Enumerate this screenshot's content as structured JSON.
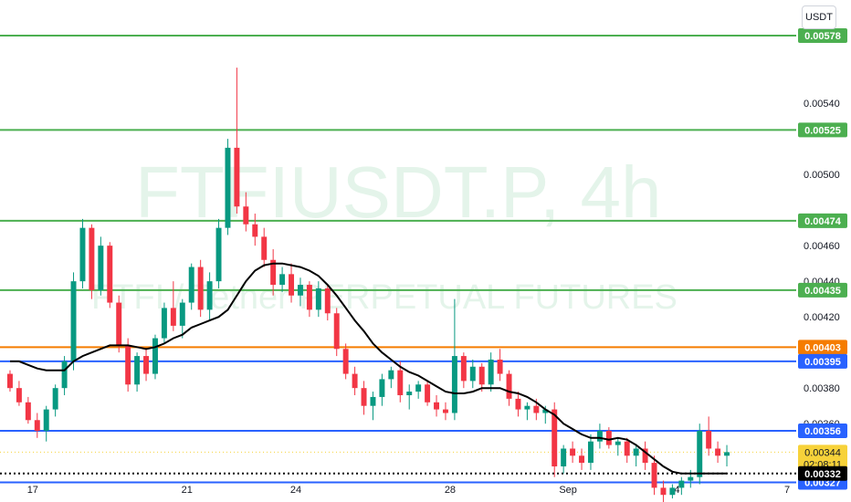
{
  "chart_data": {
    "type": "candlestick",
    "unit": "USDT",
    "watermark_symbol": "FTFIUSDT.P, 4h",
    "watermark_desc": "FTFI / Tether PERPETUAL FUTURES",
    "ylim": [
      0.00316,
      0.00598
    ],
    "y_ticks": [
      "0.00540",
      "0.00500",
      "0.00460",
      "0.00440",
      "0.00420",
      "0.00380",
      "0.00360"
    ],
    "x_ticks": [
      "17",
      "21",
      "24",
      "28",
      "Sep",
      "4",
      "7"
    ],
    "levels": [
      {
        "value": "0.00578",
        "color": "#4caf50"
      },
      {
        "value": "0.00525",
        "color": "#4caf50"
      },
      {
        "value": "0.00474",
        "color": "#4caf50"
      },
      {
        "value": "0.00435",
        "color": "#4caf50"
      },
      {
        "value": "0.00403",
        "color": "#f57c00"
      },
      {
        "value": "0.00395",
        "color": "#2962ff"
      },
      {
        "value": "0.00356",
        "color": "#2962ff"
      },
      {
        "value": "0.00327",
        "color": "#2962ff"
      }
    ],
    "current_price": "0.00344",
    "countdown": "02:08:11",
    "moving_average_label": "0.00332",
    "colors": {
      "up": "#089981",
      "down": "#f23645",
      "ma": "#000000",
      "price": "#f7d23a"
    },
    "candles": [
      [
        0.00388,
        0.0039,
        0.00378,
        0.0038
      ],
      [
        0.0038,
        0.00384,
        0.0037,
        0.00372
      ],
      [
        0.00372,
        0.00375,
        0.0036,
        0.00362
      ],
      [
        0.00362,
        0.00366,
        0.00352,
        0.00356
      ],
      [
        0.00356,
        0.0037,
        0.0035,
        0.00368
      ],
      [
        0.00368,
        0.00382,
        0.00364,
        0.0038
      ],
      [
        0.0038,
        0.00398,
        0.00376,
        0.00395
      ],
      [
        0.00395,
        0.00445,
        0.0039,
        0.0044
      ],
      [
        0.0044,
        0.00475,
        0.00436,
        0.0047
      ],
      [
        0.0047,
        0.00472,
        0.0043,
        0.00435
      ],
      [
        0.00435,
        0.00465,
        0.00432,
        0.0046
      ],
      [
        0.0046,
        0.00462,
        0.00425,
        0.00428
      ],
      [
        0.00428,
        0.00432,
        0.004,
        0.00404
      ],
      [
        0.00404,
        0.00408,
        0.00378,
        0.00382
      ],
      [
        0.00382,
        0.004,
        0.00378,
        0.00398
      ],
      [
        0.00398,
        0.00402,
        0.00384,
        0.00388
      ],
      [
        0.00388,
        0.0041,
        0.00385,
        0.00408
      ],
      [
        0.00408,
        0.00428,
        0.00405,
        0.00425
      ],
      [
        0.00425,
        0.0044,
        0.00412,
        0.00415
      ],
      [
        0.00415,
        0.0043,
        0.00408,
        0.00428
      ],
      [
        0.00428,
        0.0045,
        0.00424,
        0.00448
      ],
      [
        0.00448,
        0.00452,
        0.0042,
        0.00424
      ],
      [
        0.00424,
        0.00445,
        0.00418,
        0.0044
      ],
      [
        0.0044,
        0.00475,
        0.00436,
        0.0047
      ],
      [
        0.0047,
        0.0052,
        0.00466,
        0.00515
      ],
      [
        0.00515,
        0.0056,
        0.00478,
        0.00482
      ],
      [
        0.00482,
        0.0049,
        0.00468,
        0.00472
      ],
      [
        0.00472,
        0.00478,
        0.0046,
        0.00465
      ],
      [
        0.00465,
        0.0047,
        0.00448,
        0.00452
      ],
      [
        0.00452,
        0.00458,
        0.00432,
        0.00438
      ],
      [
        0.00438,
        0.00448,
        0.00434,
        0.00444
      ],
      [
        0.00444,
        0.0045,
        0.00428,
        0.00432
      ],
      [
        0.00432,
        0.00442,
        0.00426,
        0.00438
      ],
      [
        0.00438,
        0.0044,
        0.0042,
        0.00424
      ],
      [
        0.00424,
        0.0044,
        0.0042,
        0.00436
      ],
      [
        0.00436,
        0.00438,
        0.00418,
        0.00422
      ],
      [
        0.00422,
        0.00425,
        0.00398,
        0.00402
      ],
      [
        0.00402,
        0.00405,
        0.00385,
        0.00388
      ],
      [
        0.00388,
        0.00392,
        0.00376,
        0.0038
      ],
      [
        0.0038,
        0.00384,
        0.00365,
        0.0037
      ],
      [
        0.0037,
        0.00378,
        0.00362,
        0.00375
      ],
      [
        0.00375,
        0.00388,
        0.0037,
        0.00385
      ],
      [
        0.00385,
        0.00392,
        0.0038,
        0.0039
      ],
      [
        0.0039,
        0.00395,
        0.00372,
        0.00376
      ],
      [
        0.00376,
        0.00382,
        0.00368,
        0.00378
      ],
      [
        0.00378,
        0.00384,
        0.00374,
        0.00382
      ],
      [
        0.00382,
        0.00384,
        0.0037,
        0.00372
      ],
      [
        0.00372,
        0.00376,
        0.00364,
        0.00368
      ],
      [
        0.00368,
        0.00372,
        0.00362,
        0.00366
      ],
      [
        0.00366,
        0.0043,
        0.00362,
        0.00398
      ],
      [
        0.00398,
        0.004,
        0.0038,
        0.00384
      ],
      [
        0.00384,
        0.00396,
        0.0038,
        0.00392
      ],
      [
        0.00392,
        0.00394,
        0.00378,
        0.00382
      ],
      [
        0.00382,
        0.004,
        0.00378,
        0.00396
      ],
      [
        0.00396,
        0.00402,
        0.00384,
        0.00388
      ],
      [
        0.00388,
        0.0039,
        0.0037,
        0.00374
      ],
      [
        0.00374,
        0.00378,
        0.00364,
        0.00368
      ],
      [
        0.00368,
        0.00372,
        0.00362,
        0.0037
      ],
      [
        0.0037,
        0.00374,
        0.00362,
        0.00366
      ],
      [
        0.00366,
        0.0037,
        0.0036,
        0.00368
      ],
      [
        0.00368,
        0.00372,
        0.0033,
        0.00336
      ],
      [
        0.00336,
        0.00348,
        0.00332,
        0.00346
      ],
      [
        0.00346,
        0.0035,
        0.00338,
        0.00342
      ],
      [
        0.00342,
        0.00346,
        0.00334,
        0.00338
      ],
      [
        0.00338,
        0.00354,
        0.00334,
        0.0035
      ],
      [
        0.0035,
        0.0036,
        0.00346,
        0.00356
      ],
      [
        0.00356,
        0.00358,
        0.00346,
        0.00348
      ],
      [
        0.00348,
        0.00352,
        0.00342,
        0.0035
      ],
      [
        0.0035,
        0.00352,
        0.00338,
        0.00342
      ],
      [
        0.00342,
        0.00348,
        0.00336,
        0.00346
      ],
      [
        0.00346,
        0.0035,
        0.00334,
        0.00338
      ],
      [
        0.00338,
        0.00342,
        0.0032,
        0.00324
      ],
      [
        0.00324,
        0.00328,
        0.00316,
        0.0032
      ],
      [
        0.0032,
        0.00326,
        0.00318,
        0.00324
      ],
      [
        0.00324,
        0.0033,
        0.0032,
        0.00328
      ],
      [
        0.00328,
        0.00334,
        0.00324,
        0.0033
      ],
      [
        0.0033,
        0.0036,
        0.00326,
        0.00356
      ],
      [
        0.00356,
        0.00364,
        0.00342,
        0.00346
      ],
      [
        0.00346,
        0.0035,
        0.00338,
        0.00342
      ],
      [
        0.00342,
        0.00348,
        0.00336,
        0.00344
      ]
    ],
    "ma": [
      0.00395,
      0.00395,
      0.00393,
      0.00391,
      0.0039,
      0.0039,
      0.0039,
      0.00395,
      0.00398,
      0.004,
      0.00402,
      0.00404,
      0.00404,
      0.00404,
      0.00403,
      0.00402,
      0.00403,
      0.00405,
      0.00408,
      0.0041,
      0.00414,
      0.00416,
      0.00418,
      0.0042,
      0.00424,
      0.00432,
      0.0044,
      0.00446,
      0.00449,
      0.0045,
      0.0045,
      0.00449,
      0.00448,
      0.00446,
      0.00443,
      0.00438,
      0.00432,
      0.00425,
      0.00418,
      0.00412,
      0.00405,
      0.004,
      0.00396,
      0.00392,
      0.00389,
      0.00387,
      0.00384,
      0.00381,
      0.00378,
      0.00377,
      0.00377,
      0.00378,
      0.0038,
      0.0038,
      0.0038,
      0.00378,
      0.00377,
      0.00375,
      0.00372,
      0.00368,
      0.00365,
      0.0036,
      0.00357,
      0.00354,
      0.00352,
      0.00352,
      0.00351,
      0.00352,
      0.00351,
      0.00348,
      0.00344,
      0.0034,
      0.00336,
      0.00333,
      0.00332,
      0.00332,
      0.00332,
      0.00332,
      0.00332,
      0.00332
    ]
  }
}
